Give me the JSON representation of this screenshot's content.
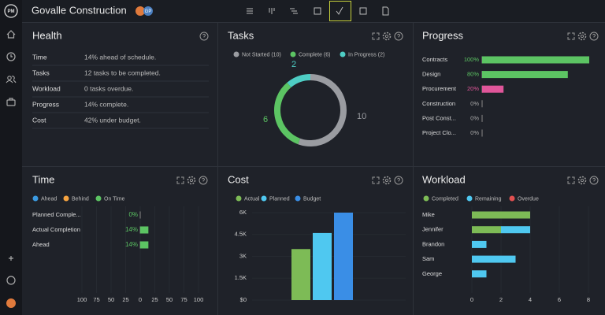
{
  "header": {
    "logo": "PM",
    "title": "Govalle Construction",
    "avatar": "GP"
  },
  "health": {
    "title": "Health",
    "rows": [
      [
        "Time",
        "14% ahead of schedule."
      ],
      [
        "Tasks",
        "12 tasks to be completed."
      ],
      [
        "Workload",
        "0 tasks overdue."
      ],
      [
        "Progress",
        "14% complete."
      ],
      [
        "Cost",
        "42% under budget."
      ]
    ]
  },
  "chart_data": [
    {
      "type": "donut",
      "title": "Tasks",
      "categories": [
        "Not Started (10)",
        "Complete (6)",
        "In Progress (2)"
      ],
      "values": [
        10,
        6,
        2
      ],
      "colors": [
        "#9a9ca1",
        "#5cc463",
        "#4ecdc4"
      ]
    },
    {
      "type": "hbar",
      "title": "Progress",
      "categories": [
        "Contracts",
        "Design",
        "Procurement",
        "Construction",
        "Post Const...",
        "Project Clo..."
      ],
      "values": [
        100,
        80,
        20,
        0,
        0,
        0
      ],
      "value_labels": [
        "100%",
        "80%",
        "20%",
        "0%",
        "0%",
        "0%"
      ],
      "colors": [
        "#5cc463",
        "#5cc463",
        "#e0569a",
        "#5cc463",
        "#5cc463",
        "#5cc463"
      ],
      "xlim": [
        0,
        100
      ]
    },
    {
      "type": "hbar",
      "title": "Time",
      "series": [
        {
          "name": "Ahead",
          "color": "#3b9ae1"
        },
        {
          "name": "Behind",
          "color": "#f5a340"
        },
        {
          "name": "On Time",
          "color": "#5cc463"
        }
      ],
      "categories": [
        "Planned Comple...",
        "Actual Completion",
        "Ahead"
      ],
      "values": [
        0,
        14,
        14
      ],
      "value_labels": [
        "0%",
        "14%",
        "14%"
      ],
      "color": "#5cc463",
      "xlim": [
        -100,
        100
      ],
      "xticks": [
        {
          "value": -100,
          "label": "100"
        },
        {
          "value": -75,
          "label": "75"
        },
        {
          "value": -50,
          "label": "50"
        },
        {
          "value": -25,
          "label": "25"
        },
        0,
        25,
        50,
        75,
        100
      ]
    },
    {
      "type": "bar",
      "title": "Cost",
      "series": [
        {
          "name": "Actual",
          "color": "#7dbb56",
          "values": [
            3500
          ]
        },
        {
          "name": "Planned",
          "color": "#4fc8f0",
          "values": [
            4600
          ]
        },
        {
          "name": "Budget",
          "color": "#3a8ee6",
          "values": [
            6000
          ]
        }
      ],
      "ylim": [
        0,
        6000
      ],
      "yticks": [
        {
          "value": 0,
          "label": "$0"
        },
        {
          "value": 1500,
          "label": "1.5K"
        },
        {
          "value": 3000,
          "label": "3K"
        },
        {
          "value": 4500,
          "label": "4.5K"
        },
        {
          "value": 6000,
          "label": "6K"
        }
      ]
    },
    {
      "type": "stacked-hbar",
      "title": "Workload",
      "categories": [
        "Mike",
        "Jennifer",
        "Brandon",
        "Sam",
        "George"
      ],
      "series": [
        {
          "name": "Completed",
          "color": "#7dbb56",
          "values": [
            4,
            2,
            0,
            0,
            0
          ]
        },
        {
          "name": "Remaining",
          "color": "#4fc8f0",
          "values": [
            0,
            2,
            1,
            3,
            1
          ]
        },
        {
          "name": "Overdue",
          "color": "#e05050",
          "values": [
            0,
            0,
            0,
            0,
            0
          ]
        }
      ],
      "xlim": [
        0,
        8
      ],
      "xticks": [
        0,
        2,
        4,
        6,
        8
      ]
    }
  ]
}
